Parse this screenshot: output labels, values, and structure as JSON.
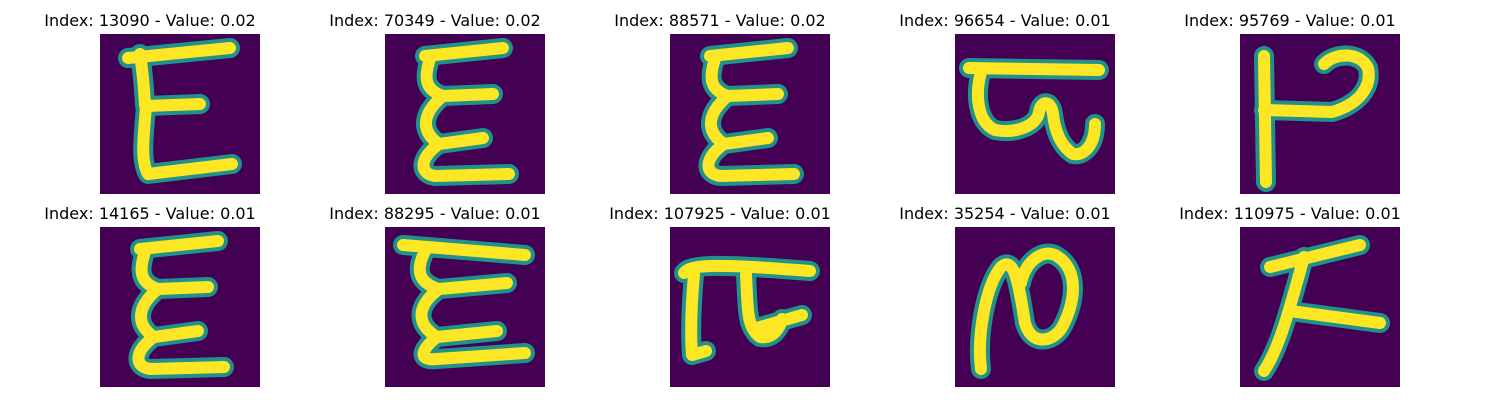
{
  "colors": {
    "background": "#440154",
    "stroke_mid": "#21918c",
    "stroke_core": "#fde725"
  },
  "labels": {
    "index_prefix": "Index: ",
    "value_sep": " - Value: "
  },
  "samples": [
    {
      "index": "13090",
      "value": "0.02",
      "glyph": "E-straight"
    },
    {
      "index": "70349",
      "value": "0.02",
      "glyph": "E-wavy"
    },
    {
      "index": "88571",
      "value": "0.02",
      "glyph": "E-wavy"
    },
    {
      "index": "96654",
      "value": "0.01",
      "glyph": "bar-loop"
    },
    {
      "index": "95769",
      "value": "0.01",
      "glyph": "P-rotated"
    },
    {
      "index": "14165",
      "value": "0.01",
      "glyph": "E-wavy"
    },
    {
      "index": "88295",
      "value": "0.01",
      "glyph": "E-wavy-wide"
    },
    {
      "index": "107925",
      "value": "0.01",
      "glyph": "pi-like"
    },
    {
      "index": "35254",
      "value": "0.01",
      "glyph": "N-loop"
    },
    {
      "index": "110975",
      "value": "0.01",
      "glyph": "K-slant"
    }
  ]
}
